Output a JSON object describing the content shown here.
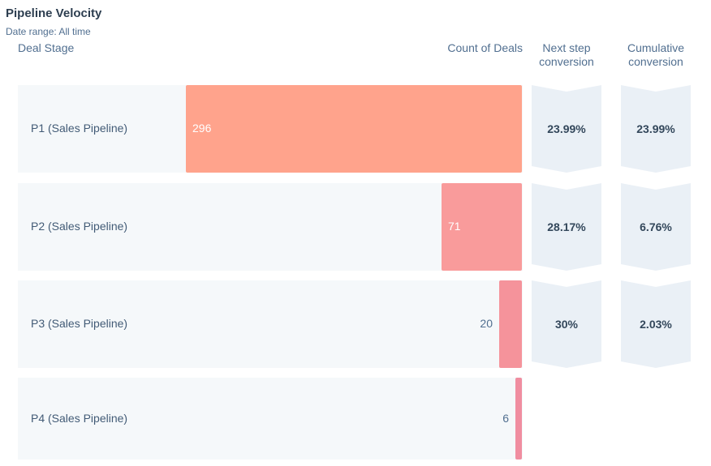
{
  "title": "Pipeline Velocity",
  "date_range": "Date range:  All time",
  "headers": {
    "stage": "Deal Stage",
    "count": "Count of Deals",
    "next": "Next step\nconversion",
    "cumulative": "Cumulative\nconversion"
  },
  "colors": {
    "p1": "#ffa38c",
    "p2": "#f99b9b",
    "p3": "#f5939b",
    "p4": "#f08da0"
  },
  "chart_data": {
    "type": "bar",
    "categories": [
      "P1 (Sales Pipeline)",
      "P2 (Sales Pipeline)",
      "P3 (Sales Pipeline)",
      "P4 (Sales Pipeline)"
    ],
    "values": [
      296,
      71,
      20,
      6
    ],
    "next_step_conversion": [
      "23.99%",
      "28.17%",
      "30%"
    ],
    "cumulative_conversion": [
      "23.99%",
      "6.76%",
      "2.03%"
    ]
  }
}
